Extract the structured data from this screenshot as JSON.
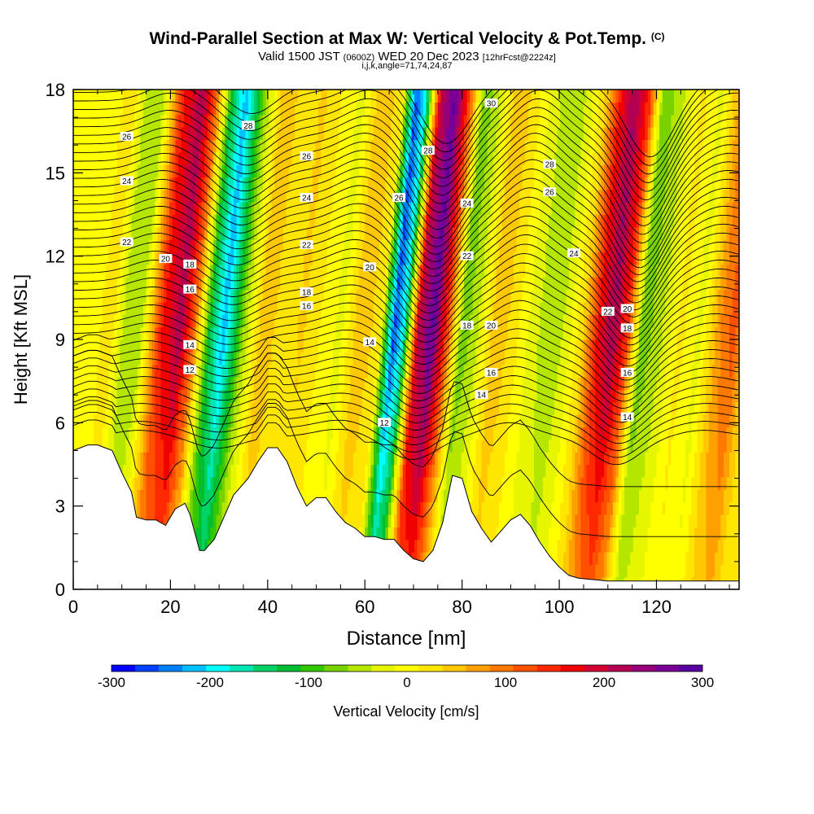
{
  "title": {
    "main": "Wind-Parallel Section at Max W: Vertical Velocity & Pot.Temp.",
    "copyright": "(C)",
    "valid_prefix": "Valid 1500 JST",
    "valid_utc": "(0600Z)",
    "valid_date": "WED 20 Dec 2023",
    "forecast": "[12hrFcst@2224z]",
    "grid_info": "i,j,k,angle=71,74,24,87"
  },
  "chart_data": {
    "type": "heatmap",
    "xlabel": "Distance [nm]",
    "ylabel": "Height [Kft MSL]",
    "xlim": [
      0,
      137
    ],
    "ylim": [
      0,
      18
    ],
    "x_ticks": [
      0,
      20,
      40,
      60,
      80,
      100,
      120
    ],
    "y_ticks": [
      0,
      3,
      6,
      9,
      12,
      15,
      18
    ],
    "colorbar": {
      "label": "Vertical Velocity [cm/s]",
      "range": [
        -300,
        300
      ],
      "tick_labels": [
        -300,
        -200,
        -100,
        0,
        100,
        200,
        300
      ],
      "colors": [
        "#0000ff",
        "#0040ff",
        "#0080ff",
        "#00c0ff",
        "#00ffff",
        "#00e6b4",
        "#00d264",
        "#00be32",
        "#32c800",
        "#78d200",
        "#b4e600",
        "#e6f500",
        "#ffff00",
        "#ffe600",
        "#ffc800",
        "#ffa000",
        "#ff7800",
        "#ff5000",
        "#ff2800",
        "#f00000",
        "#d20032",
        "#b40050",
        "#960078",
        "#780096",
        "#5a00a0"
      ]
    },
    "columns_velocity_cm_s": {
      "x_nm": [
        0,
        3,
        6,
        9,
        12,
        16,
        20,
        23,
        26,
        29,
        33,
        37,
        41,
        45,
        49,
        53,
        57,
        61,
        64,
        66,
        69,
        72,
        75,
        78,
        81,
        85,
        89,
        93,
        97,
        100,
        103,
        106,
        109,
        112,
        115,
        119,
        123,
        127,
        131,
        134,
        137
      ],
      "w": [
        0,
        10,
        20,
        -60,
        -40,
        150,
        220,
        100,
        -120,
        -220,
        -60,
        60,
        20,
        40,
        10,
        -20,
        60,
        20,
        -260,
        -180,
        200,
        280,
        120,
        -80,
        -40,
        60,
        20,
        -30,
        -60,
        -20,
        40,
        160,
        230,
        140,
        -80,
        -40,
        20,
        -20,
        80,
        120,
        40
      ]
    },
    "terrain_kft": {
      "x_nm": [
        0,
        3,
        5,
        8,
        10,
        12,
        13,
        15,
        17,
        19,
        21,
        23,
        24,
        26,
        27,
        29,
        31,
        33,
        36,
        38,
        40,
        42,
        44,
        46,
        48,
        50,
        52,
        54,
        56,
        58,
        60,
        62,
        64,
        66,
        68,
        70,
        72,
        74,
        76,
        78,
        80,
        82,
        84,
        86,
        88,
        90,
        92,
        94,
        96,
        98,
        100,
        102,
        104,
        110,
        120,
        130,
        137
      ],
      "h": [
        5,
        5.2,
        5.2,
        5,
        4.2,
        3.5,
        2.6,
        2.5,
        2.5,
        2.3,
        2.9,
        3.1,
        2.7,
        1.4,
        1.4,
        1.8,
        2.6,
        3.4,
        4,
        4.6,
        5.1,
        5.1,
        4.6,
        3.7,
        3,
        3.3,
        3.3,
        2.8,
        2.4,
        2.2,
        1.9,
        1.9,
        1.8,
        1.8,
        1.4,
        1.1,
        1,
        1.4,
        2.4,
        4.1,
        4,
        2.8,
        2.2,
        1.7,
        2.1,
        2.5,
        2.7,
        2.3,
        1.7,
        1.2,
        0.8,
        0.5,
        0.4,
        0.3,
        0.3,
        0.3,
        0.3
      ]
    },
    "theta_contours": {
      "level_labels": [
        "12",
        "14",
        "16",
        "18",
        "20",
        "22",
        "24",
        "26",
        "28",
        "30"
      ],
      "wave_centers_nm": [
        14,
        30,
        55,
        70,
        90,
        112,
        130
      ],
      "wave_amplitudes_kft": [
        0.5,
        -0.9,
        0.6,
        -1.8,
        1.1,
        -2.2,
        0.5
      ]
    }
  }
}
